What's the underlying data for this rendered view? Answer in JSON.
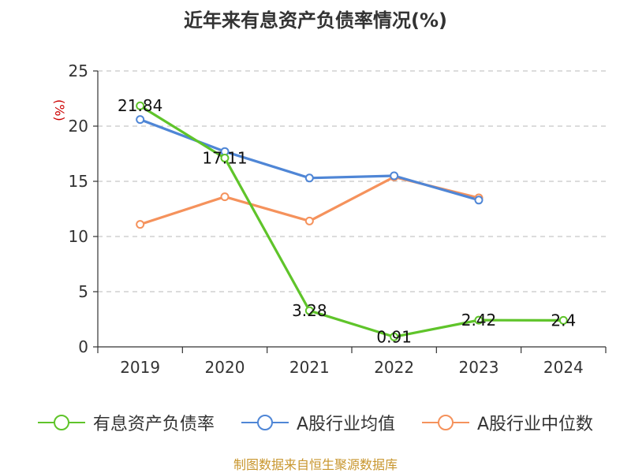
{
  "title": "近年来有息资产负债率情况(%)",
  "unit": "(%)",
  "source": "制图数据来自恒生聚源数据库",
  "chart_data": {
    "type": "line",
    "x": [
      "2019",
      "2020",
      "2021",
      "2022",
      "2023",
      "2024"
    ],
    "ylim": [
      0,
      25
    ],
    "yticks": [
      "0",
      "5",
      "10",
      "15",
      "20",
      "25"
    ],
    "grid": true,
    "legend_position": "bottom",
    "series": [
      {
        "name": "有息资产负债率",
        "color": "#5fc42a",
        "values": [
          21.84,
          17.11,
          3.28,
          0.91,
          2.42,
          2.4
        ],
        "labels": [
          "21.84",
          "17.11",
          "3.28",
          "0.91",
          "2.42",
          "2.4"
        ]
      },
      {
        "name": "A股行业均值",
        "color": "#4f86d6",
        "values": [
          20.6,
          17.7,
          15.3,
          15.5,
          13.3,
          null
        ]
      },
      {
        "name": "A股行业中位数",
        "color": "#f5925c",
        "values": [
          11.1,
          13.6,
          11.4,
          15.4,
          13.5,
          null
        ]
      }
    ]
  }
}
